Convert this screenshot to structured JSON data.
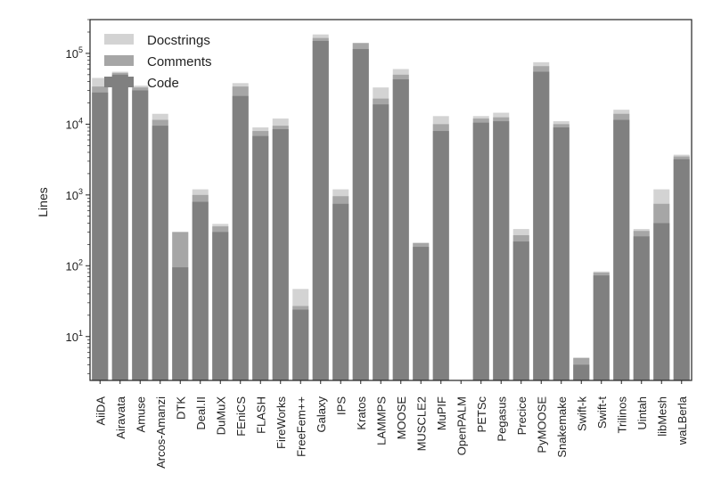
{
  "chart_data": {
    "type": "bar",
    "stacked": true,
    "scale": "log",
    "ylabel": "Lines",
    "xlabel": "",
    "title": "",
    "ylim": [
      2.4,
      300000
    ],
    "yticks": [
      {
        "value": 10,
        "base": "10",
        "exp": "1"
      },
      {
        "value": 100,
        "base": "10",
        "exp": "2"
      },
      {
        "value": 1000,
        "base": "10",
        "exp": "3"
      },
      {
        "value": 10000,
        "base": "10",
        "exp": "4"
      },
      {
        "value": 100000,
        "base": "10",
        "exp": "5"
      }
    ],
    "legend_position": "top-left",
    "categories": [
      "AiiDA",
      "Airavata",
      "Amuse",
      "Arcos-Amanzi",
      "DTK",
      "Deal.II",
      "DuMuX",
      "FEniCS",
      "FLASH",
      "FireWorks",
      "FreeFem++",
      "Galaxy",
      "IPS",
      "Kratos",
      "LAMMPS",
      "MOOSE",
      "MUSCLE2",
      "MuPIF",
      "OpenPALM",
      "PETSc",
      "Pegasus",
      "Precice",
      "PyMOOSE",
      "Snakemake",
      "Swift-k",
      "Swift-t",
      "Trilinos",
      "Uintah",
      "libMesh",
      "waLBerla"
    ],
    "series": [
      {
        "name": "Code",
        "color": "#808080",
        "values": [
          28000,
          50000,
          30000,
          9500,
          95,
          800,
          300,
          25000,
          6800,
          8500,
          24,
          150000,
          750,
          115000,
          19000,
          43000,
          185,
          8000,
          0,
          10500,
          11000,
          220,
          55000,
          9000,
          4,
          73,
          11500,
          260,
          400,
          3200
        ]
      },
      {
        "name": "Comments",
        "color": "#a6a6a6",
        "values": [
          34000,
          53000,
          33000,
          11500,
          300,
          1000,
          360,
          34000,
          8000,
          9500,
          27,
          165000,
          960,
          140000,
          23000,
          50000,
          210,
          10000,
          0,
          12000,
          12500,
          270,
          66000,
          10000,
          5,
          80,
          14000,
          310,
          750,
          3500
        ]
      },
      {
        "name": "Docstrings",
        "color": "#d3d3d3",
        "values": [
          45000,
          55000,
          35000,
          14000,
          300,
          1200,
          390,
          38000,
          9000,
          12000,
          47,
          185000,
          1200,
          140000,
          33000,
          60000,
          210,
          13000,
          0,
          13000,
          14500,
          330,
          75000,
          11000,
          5,
          83,
          16000,
          330,
          1200,
          3700
        ]
      }
    ]
  }
}
